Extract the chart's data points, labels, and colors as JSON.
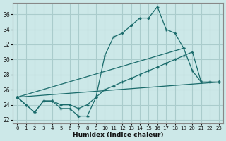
{
  "xlabel": "Humidex (Indice chaleur)",
  "bg_color": "#cce8e8",
  "grid_color": "#aacccc",
  "line_color": "#1a6b6b",
  "xlim": [
    -0.5,
    23.5
  ],
  "ylim": [
    21.5,
    37.5
  ],
  "xticks": [
    0,
    1,
    2,
    3,
    4,
    5,
    6,
    7,
    8,
    9,
    10,
    11,
    12,
    13,
    14,
    15,
    16,
    17,
    18,
    19,
    20,
    21,
    22,
    23
  ],
  "yticks": [
    22,
    24,
    26,
    28,
    30,
    32,
    34,
    36
  ],
  "series1_x": [
    0,
    1,
    2,
    3,
    4,
    5,
    6,
    7,
    8,
    9,
    10,
    11,
    12,
    13,
    14,
    15,
    16,
    17,
    18,
    19,
    20,
    21,
    22,
    23
  ],
  "series1_y": [
    25.0,
    24.0,
    23.0,
    24.5,
    24.5,
    23.5,
    23.5,
    22.5,
    22.5,
    25.0,
    30.5,
    33.0,
    33.5,
    34.5,
    35.5,
    35.5,
    37.0,
    34.0,
    33.5,
    31.5,
    28.5,
    27.0,
    27.0,
    27.0
  ],
  "series2_x": [
    0,
    1,
    2,
    3,
    4,
    5,
    6,
    7,
    8,
    9,
    10,
    11,
    12,
    13,
    14,
    15,
    16,
    17,
    18,
    19,
    20,
    21,
    22,
    23
  ],
  "series2_y": [
    25.0,
    24.0,
    23.0,
    24.5,
    24.5,
    24.0,
    24.0,
    23.5,
    24.0,
    25.0,
    26.0,
    26.5,
    27.0,
    27.5,
    28.0,
    28.5,
    29.0,
    29.5,
    30.0,
    30.5,
    31.0,
    27.0,
    27.0,
    27.0
  ],
  "series3_x": [
    0,
    23
  ],
  "series3_y": [
    25.0,
    27.0
  ],
  "series4_x": [
    0,
    19
  ],
  "series4_y": [
    25.0,
    31.5
  ]
}
